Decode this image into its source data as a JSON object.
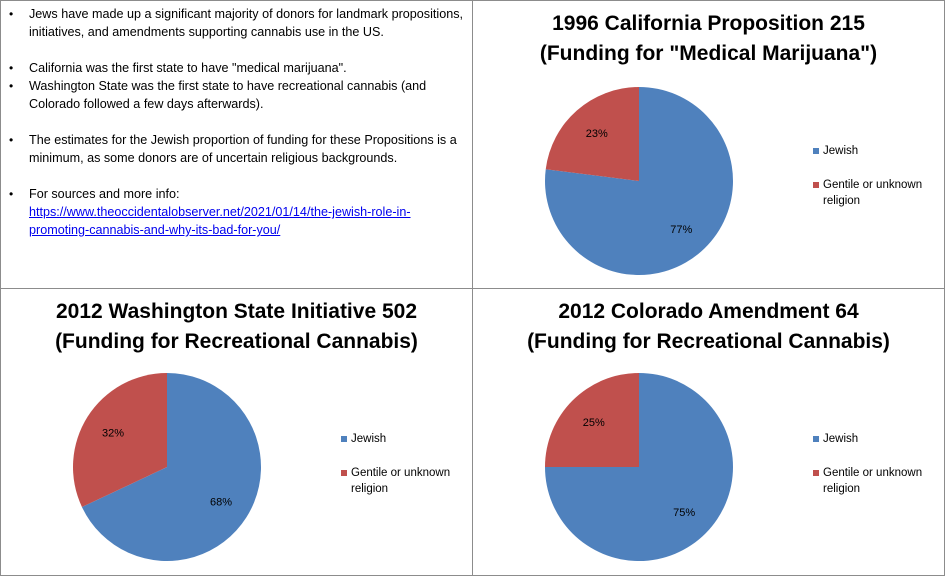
{
  "notes": {
    "bullets": [
      "Jews have made up a  significant majority of donors for landmark propositions, initiatives, and amendments supporting cannabis use in the US.",
      "California was the first state to have \"medical marijuana\".",
      "Washington State was the first state to have recreational cannabis (and Colorado followed a few days afterwards).",
      "The estimates for the Jewish  proportion of funding for these Propositions  is  a minimum,  as some donors are of uncertain religious backgrounds.",
      "For sources and more info:"
    ],
    "link": "https://www.theoccidentalobserver.net/2021/01/14/the-jewish-role-in-promoting-cannabis-and-why-its-bad-for-you/"
  },
  "colors": {
    "jewish": "#4f81bd",
    "gentile": "#c0504d"
  },
  "chart_data": [
    {
      "type": "pie",
      "title": [
        "1996 California Proposition 215",
        "(Funding for \"Medical Marijuana\")"
      ],
      "categories": [
        "Jewish",
        "Gentile or unknown religion"
      ],
      "values": [
        77,
        23
      ],
      "labels": [
        "77%",
        "23%"
      ],
      "legend": "right"
    },
    {
      "type": "pie",
      "title": [
        "2012 Washington State Initiative 502",
        "(Funding for Recreational Cannabis)"
      ],
      "categories": [
        "Jewish",
        "Gentile or unknown religion"
      ],
      "values": [
        68,
        32
      ],
      "labels": [
        "68%",
        "32%"
      ],
      "legend": "right"
    },
    {
      "type": "pie",
      "title": [
        "2012 Colorado Amendment 64",
        "(Funding for Recreational Cannabis)"
      ],
      "categories": [
        "Jewish",
        "Gentile or unknown religion"
      ],
      "values": [
        75,
        25
      ],
      "labels": [
        "75%",
        "25%"
      ],
      "legend": "right"
    }
  ]
}
